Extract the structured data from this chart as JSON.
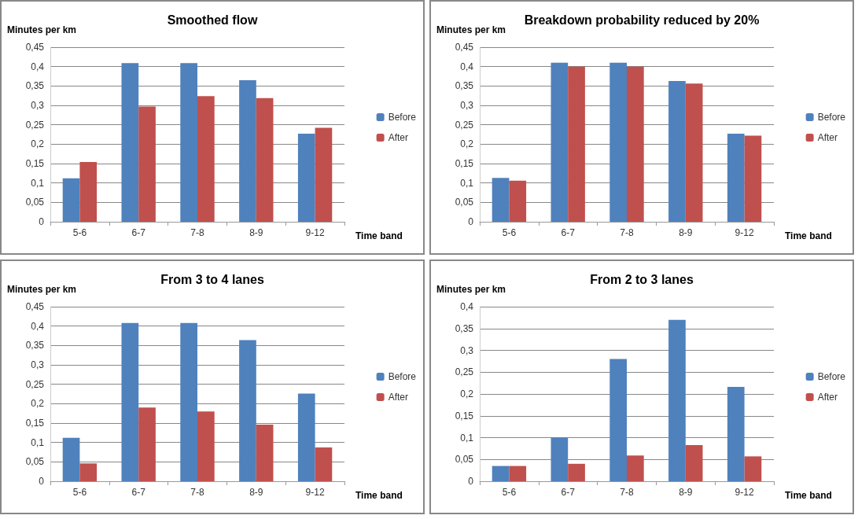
{
  "chart_data": [
    {
      "type": "bar",
      "title": "Smoothed flow",
      "xlabel": "Time band",
      "ylabel": "Minutes per km",
      "categories": [
        "5-6",
        "6-7",
        "7-8",
        "8-9",
        "9-12"
      ],
      "series": [
        {
          "name": "Before",
          "color": "#4f81bd",
          "values": [
            0.112,
            0.409,
            0.409,
            0.365,
            0.227
          ]
        },
        {
          "name": "After",
          "color": "#c0504d",
          "values": [
            0.154,
            0.297,
            0.324,
            0.319,
            0.242
          ]
        }
      ],
      "ylim": [
        0,
        0.45
      ],
      "yticks": [
        {
          "value": 0,
          "label": "0"
        },
        {
          "value": 0.05,
          "label": "0,05"
        },
        {
          "value": 0.1,
          "label": "0,1"
        },
        {
          "value": 0.15,
          "label": "0,15"
        },
        {
          "value": 0.2,
          "label": "0,2"
        },
        {
          "value": 0.25,
          "label": "0,25"
        },
        {
          "value": 0.3,
          "label": "0,3"
        },
        {
          "value": 0.35,
          "label": "0,35"
        },
        {
          "value": 0.4,
          "label": "0,4"
        },
        {
          "value": 0.45,
          "label": "0,45"
        }
      ],
      "grid": "y",
      "legend": "right"
    },
    {
      "type": "bar",
      "title": "Breakdown probability reduced by 20%",
      "xlabel": "Time band",
      "ylabel": "Minutes per km",
      "categories": [
        "5-6",
        "6-7",
        "7-8",
        "8-9",
        "9-12"
      ],
      "series": [
        {
          "name": "Before",
          "color": "#4f81bd",
          "values": [
            0.113,
            0.41,
            0.41,
            0.363,
            0.227
          ]
        },
        {
          "name": "After",
          "color": "#c0504d",
          "values": [
            0.106,
            0.4,
            0.4,
            0.356,
            0.222
          ]
        }
      ],
      "ylim": [
        0,
        0.45
      ],
      "yticks": [
        {
          "value": 0,
          "label": "0"
        },
        {
          "value": 0.05,
          "label": "0,05"
        },
        {
          "value": 0.1,
          "label": "0,1"
        },
        {
          "value": 0.15,
          "label": "0,15"
        },
        {
          "value": 0.2,
          "label": "0,2"
        },
        {
          "value": 0.25,
          "label": "0,25"
        },
        {
          "value": 0.3,
          "label": "0,3"
        },
        {
          "value": 0.35,
          "label": "0,35"
        },
        {
          "value": 0.4,
          "label": "0,4"
        },
        {
          "value": 0.45,
          "label": "0,45"
        }
      ],
      "grid": "y",
      "legend": "right"
    },
    {
      "type": "bar",
      "title": "From 3 to 4 lanes",
      "xlabel": "Time band",
      "ylabel": "Minutes per km",
      "categories": [
        "5-6",
        "6-7",
        "7-8",
        "8-9",
        "9-12"
      ],
      "series": [
        {
          "name": "Before",
          "color": "#4f81bd",
          "values": [
            0.112,
            0.408,
            0.408,
            0.364,
            0.226
          ]
        },
        {
          "name": "After",
          "color": "#c0504d",
          "values": [
            0.046,
            0.19,
            0.18,
            0.146,
            0.087
          ]
        }
      ],
      "ylim": [
        0,
        0.45
      ],
      "yticks": [
        {
          "value": 0,
          "label": "0"
        },
        {
          "value": 0.05,
          "label": "0,05"
        },
        {
          "value": 0.1,
          "label": "0,1"
        },
        {
          "value": 0.15,
          "label": "0,15"
        },
        {
          "value": 0.2,
          "label": "0,2"
        },
        {
          "value": 0.25,
          "label": "0,25"
        },
        {
          "value": 0.3,
          "label": "0,3"
        },
        {
          "value": 0.35,
          "label": "0,35"
        },
        {
          "value": 0.4,
          "label": "0,4"
        },
        {
          "value": 0.45,
          "label": "0,45"
        }
      ],
      "grid": "y",
      "legend": "right"
    },
    {
      "type": "bar",
      "title": "From 2 to 3 lanes",
      "xlabel": "Time band",
      "ylabel": "Minutes per km",
      "categories": [
        "5-6",
        "6-7",
        "7-8",
        "8-9",
        "9-12"
      ],
      "series": [
        {
          "name": "Before",
          "color": "#4f81bd",
          "values": [
            0.035,
            0.1,
            0.28,
            0.37,
            0.216
          ]
        },
        {
          "name": "After",
          "color": "#c0504d",
          "values": [
            0.035,
            0.04,
            0.059,
            0.083,
            0.057
          ]
        }
      ],
      "ylim": [
        0,
        0.4
      ],
      "yticks": [
        {
          "value": 0,
          "label": "0"
        },
        {
          "value": 0.05,
          "label": "0,05"
        },
        {
          "value": 0.1,
          "label": "0,1"
        },
        {
          "value": 0.15,
          "label": "0,15"
        },
        {
          "value": 0.2,
          "label": "0,2"
        },
        {
          "value": 0.25,
          "label": "0,25"
        },
        {
          "value": 0.3,
          "label": "0,3"
        },
        {
          "value": 0.35,
          "label": "0,35"
        },
        {
          "value": 0.4,
          "label": "0,4"
        }
      ],
      "grid": "y",
      "legend": "right"
    }
  ]
}
